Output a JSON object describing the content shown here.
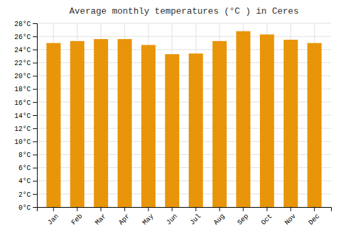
{
  "chart_data": {
    "type": "bar",
    "title": "Average monthly temperatures (°C ) in Ceres",
    "categories": [
      "Jan",
      "Feb",
      "Mar",
      "Apr",
      "May",
      "Jun",
      "Jul",
      "Aug",
      "Sep",
      "Oct",
      "Nov",
      "Dec"
    ],
    "values": [
      25.0,
      25.3,
      25.6,
      25.6,
      24.7,
      23.3,
      23.4,
      25.3,
      26.8,
      26.3,
      25.5,
      25.0
    ],
    "color": "#E8950A",
    "ylim": [
      0,
      28
    ],
    "yticks": [
      {
        "value": 0,
        "label": "0°C"
      },
      {
        "value": 2,
        "label": "2°C"
      },
      {
        "value": 4,
        "label": "4°C"
      },
      {
        "value": 6,
        "label": "6°C"
      },
      {
        "value": 8,
        "label": "8°C"
      },
      {
        "value": 10,
        "label": "10°C"
      },
      {
        "value": 12,
        "label": "12°C"
      },
      {
        "value": 14,
        "label": "14°C"
      },
      {
        "value": 16,
        "label": "16°C"
      },
      {
        "value": 18,
        "label": "18°C"
      },
      {
        "value": 20,
        "label": "20°C"
      },
      {
        "value": 22,
        "label": "22°C"
      },
      {
        "value": 24,
        "label": "24°C"
      },
      {
        "value": 26,
        "label": "26°C"
      },
      {
        "value": 28,
        "label": "28°C"
      }
    ],
    "grid": true
  }
}
